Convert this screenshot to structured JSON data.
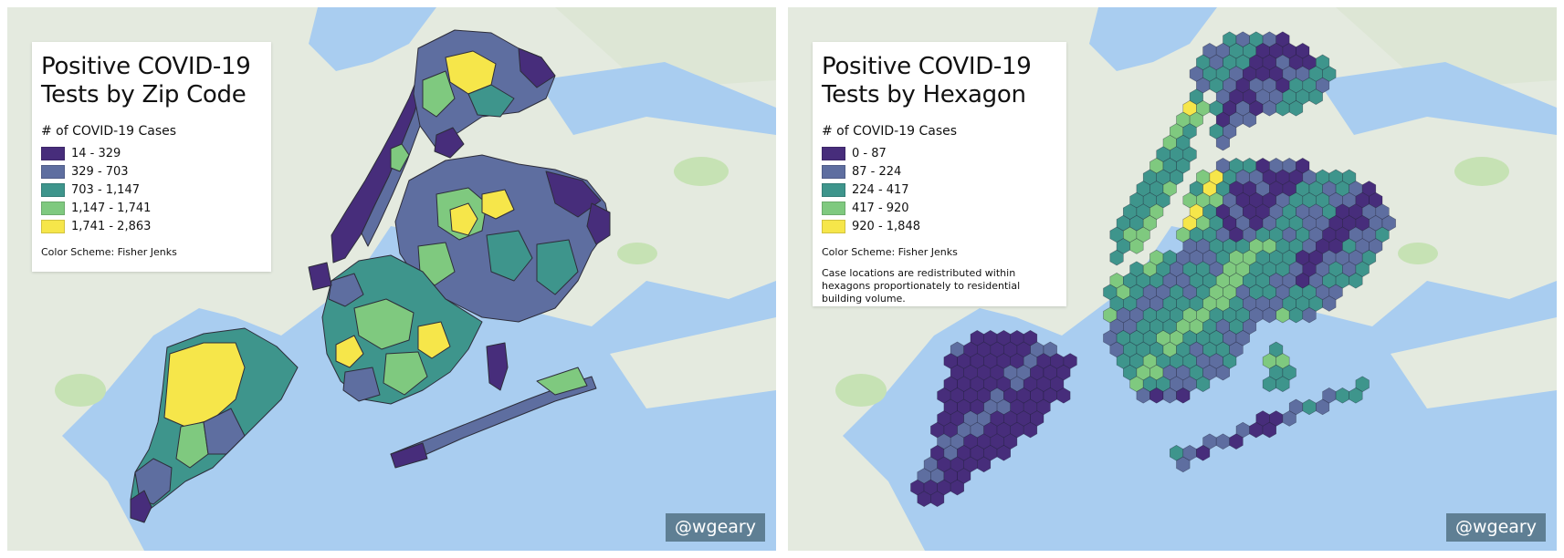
{
  "colors": {
    "water": "#a9cdf0",
    "land": "#e4eadf",
    "park": "#c6e2b4",
    "scale": [
      "#472d7b",
      "#5e6ea0",
      "#3e958c",
      "#7fc97f",
      "#f6e64a"
    ]
  },
  "left_panel": {
    "title": "Positive COVID-19 Tests by Zip Code",
    "legend_title": "# of COVID-19 Cases",
    "classes": [
      {
        "label": "14 - 329",
        "color": "#472d7b"
      },
      {
        "label": "329 - 703",
        "color": "#5e6ea0"
      },
      {
        "label": "703 - 1,147",
        "color": "#3e958c"
      },
      {
        "label": "1,147 - 1,741",
        "color": "#7fc97f"
      },
      {
        "label": "1,741 - 2,863",
        "color": "#f6e64a"
      }
    ],
    "scheme": "Color Scheme: Fisher Jenks",
    "credit": "@wgeary"
  },
  "right_panel": {
    "title": "Positive COVID-19 Tests by Hexagon",
    "legend_title": "# of COVID-19 Cases",
    "classes": [
      {
        "label": "0 - 87",
        "color": "#472d7b"
      },
      {
        "label": "87 - 224",
        "color": "#5e6ea0"
      },
      {
        "label": "224 - 417",
        "color": "#3e958c"
      },
      {
        "label": "417 - 920",
        "color": "#7fc97f"
      },
      {
        "label": "920 - 1,848",
        "color": "#f6e64a"
      }
    ],
    "scheme": "Color Scheme: Fisher Jenks",
    "note": "Case locations are redistributed within hexagons proportionately to residential building volume.",
    "credit": "@wgeary"
  }
}
